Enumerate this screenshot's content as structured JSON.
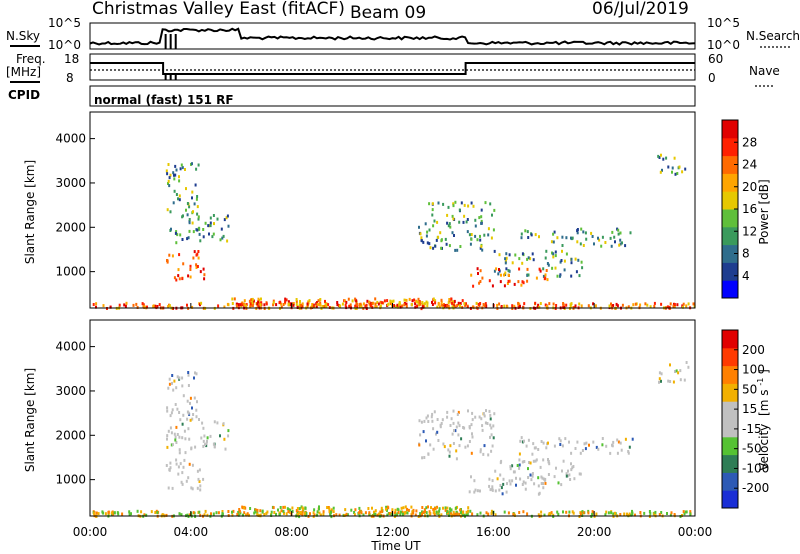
{
  "header": {
    "title": "Christmas Valley East (fitACF)",
    "beam": "Beam 09",
    "date": "06/Jul/2019"
  },
  "panels": {
    "nsky_label": "N.Sky",
    "nsky_ticks": [
      "10^5",
      "10^0"
    ],
    "nsearch_label": "N.Search",
    "nsearch_ticks": [
      "10^5",
      "10^0"
    ],
    "freq_label_1": "Freq.",
    "freq_label_2": "[MHz]",
    "freq_ticks": [
      "18",
      "8"
    ],
    "nave_label": "Nave",
    "nave_ticks": [
      "60",
      "0"
    ],
    "cpid_label": "CPID",
    "cpid_value": "normal (fast) 151 RF"
  },
  "colors": {
    "power": [
      "#0000ff",
      "#1e3d8f",
      "#2f6d8c",
      "#3a9a5c",
      "#5fbf3a",
      "#e6c800",
      "#ffa500",
      "#ff6a00",
      "#ff2000",
      "#e00000"
    ],
    "velocity": [
      "#1a2fd6",
      "#2d5ab5",
      "#2e7d55",
      "#55c233",
      "#c0c0c0",
      "#c0c0c0",
      "#f2b000",
      "#ff8000",
      "#ff3a00",
      "#e00000"
    ]
  },
  "chart_data": [
    {
      "type": "heatmap",
      "name": "power",
      "ylabel": "Slant Range [km]",
      "xlabel": "Time UT",
      "x_ticks": [
        "00:00",
        "04:00",
        "08:00",
        "12:00",
        "16:00",
        "20:00",
        "00:00"
      ],
      "xlim_hours": [
        0,
        24
      ],
      "y_ticks": [
        1000,
        2000,
        3000,
        4000
      ],
      "ylim": [
        180,
        4600
      ],
      "colorbar": {
        "label": "Power [dB]",
        "ticks": [
          4,
          8,
          12,
          16,
          20,
          24,
          28
        ],
        "range": [
          0,
          32
        ]
      }
    },
    {
      "type": "heatmap",
      "name": "velocity",
      "ylabel": "Slant Range [km]",
      "xlabel": "Time UT",
      "x_ticks": [
        "00:00",
        "04:00",
        "08:00",
        "12:00",
        "16:00",
        "20:00",
        "00:00"
      ],
      "xlim_hours": [
        0,
        24
      ],
      "y_ticks": [
        1000,
        2000,
        3000,
        4000
      ],
      "ylim": [
        180,
        4600
      ],
      "colorbar": {
        "label_main": "Velocity",
        "label_unit": "[m s",
        "label_sup": "-1",
        "label_close": "]",
        "ticks": [
          200,
          100,
          50,
          15,
          -15,
          -50,
          -100,
          -200
        ]
      }
    }
  ],
  "scatter_regions": [
    {
      "t": [
        3.0,
        4.3
      ],
      "r": [
        1600,
        3500
      ],
      "kind": "mid"
    },
    {
      "t": [
        4.3,
        5.5
      ],
      "r": [
        1700,
        2400
      ],
      "kind": "mid"
    },
    {
      "t": [
        3.0,
        4.5
      ],
      "r": [
        800,
        1500
      ],
      "kind": "hot"
    },
    {
      "t": [
        5.6,
        15.0
      ],
      "r": [
        220,
        420
      ],
      "kind": "ground"
    },
    {
      "t": [
        13.0,
        16.0
      ],
      "r": [
        1500,
        2600
      ],
      "kind": "mid"
    },
    {
      "t": [
        16.0,
        19.5
      ],
      "r": [
        900,
        1500
      ],
      "kind": "mid"
    },
    {
      "t": [
        15.0,
        18.2
      ],
      "r": [
        700,
        1100
      ],
      "kind": "hot"
    },
    {
      "t": [
        17.0,
        21.5
      ],
      "r": [
        1600,
        2000
      ],
      "kind": "mid"
    },
    {
      "t": [
        22.5,
        23.7
      ],
      "r": [
        3200,
        3700
      ],
      "kind": "mid"
    },
    {
      "t": [
        0.0,
        24.0
      ],
      "r": [
        200,
        320
      ],
      "kind": "ground"
    }
  ]
}
